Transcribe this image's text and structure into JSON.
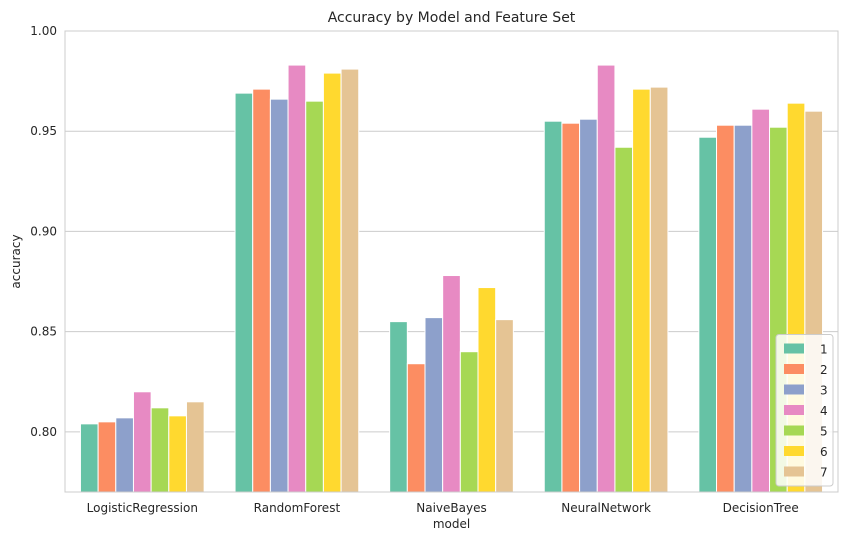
{
  "chart_data": {
    "type": "bar",
    "title": "Accuracy by Model and Feature Set",
    "xlabel": "model",
    "ylabel": "accuracy",
    "ylim": [
      0.77,
      1.0
    ],
    "yticks": [
      0.8,
      0.85,
      0.9,
      0.95,
      1.0
    ],
    "ytick_labels": [
      "0.80",
      "0.85",
      "0.90",
      "0.95",
      "1.00"
    ],
    "categories": [
      "LogisticRegression",
      "RandomForest",
      "NaiveBayes",
      "NeuralNetwork",
      "DecisionTree"
    ],
    "grid": true,
    "legend_position": "bottom-right",
    "series": [
      {
        "name": "1",
        "color": "#66c2a5",
        "values": [
          0.804,
          0.969,
          0.855,
          0.955,
          0.947
        ]
      },
      {
        "name": "2",
        "color": "#fc8d62",
        "values": [
          0.805,
          0.971,
          0.834,
          0.954,
          0.953
        ]
      },
      {
        "name": "3",
        "color": "#8da0cb",
        "values": [
          0.807,
          0.966,
          0.857,
          0.956,
          0.953
        ]
      },
      {
        "name": "4",
        "color": "#e78ac3",
        "values": [
          0.82,
          0.983,
          0.878,
          0.983,
          0.961
        ]
      },
      {
        "name": "5",
        "color": "#a6d854",
        "values": [
          0.812,
          0.965,
          0.84,
          0.942,
          0.952
        ]
      },
      {
        "name": "6",
        "color": "#ffd92f",
        "values": [
          0.808,
          0.979,
          0.872,
          0.971,
          0.964
        ]
      },
      {
        "name": "7",
        "color": "#e5c494",
        "values": [
          0.815,
          0.981,
          0.856,
          0.972,
          0.96
        ]
      }
    ]
  }
}
